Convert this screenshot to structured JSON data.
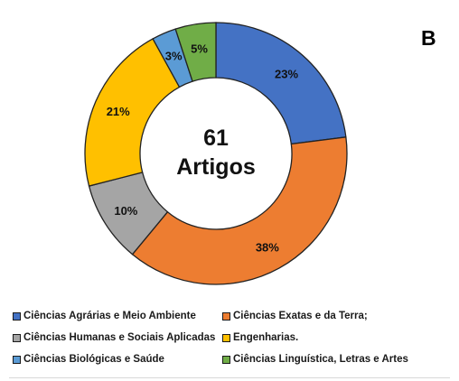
{
  "panel_label": "B",
  "center_label": {
    "line1": "61",
    "line2": "Artigos"
  },
  "colors": {
    "agrarias": "#4472C4",
    "exatas": "#ED7D31",
    "humanas": "#A5A5A5",
    "engenharias": "#FFC000",
    "biologicas": "#5B9BD5",
    "linguistica": "#70AD47"
  },
  "chart_data": {
    "type": "pie",
    "variant": "donut",
    "total": 61,
    "slices": [
      {
        "name": "Ciências Agrárias e Meio Ambiente",
        "value": 23,
        "label": "23%",
        "color": "#4472C4"
      },
      {
        "name": "Ciências Exatas e da Terra;",
        "value": 38,
        "label": "38%",
        "color": "#ED7D31"
      },
      {
        "name": "Ciências Humanas e Sociais Aplicadas",
        "value": 10,
        "label": "10%",
        "color": "#A5A5A5"
      },
      {
        "name": "Engenharias.",
        "value": 21,
        "label": "21%",
        "color": "#FFC000"
      },
      {
        "name": "Ciências Biológicas e Saúde",
        "value": 3,
        "label": "3%",
        "color": "#5B9BD5"
      },
      {
        "name": "Ciências Linguística, Letras e Artes",
        "value": 5,
        "label": "5%",
        "color": "#70AD47"
      }
    ],
    "legend": {
      "position": "bottom",
      "rows": [
        [
          "Ciências Agrárias e Meio Ambiente",
          "Ciências Exatas e da Terra;"
        ],
        [
          "Ciências Humanas e Sociais Aplicadas",
          "Engenharias."
        ],
        [
          "Ciências Biológicas e Saúde",
          "Ciências Linguística, Letras e Artes"
        ]
      ]
    }
  }
}
